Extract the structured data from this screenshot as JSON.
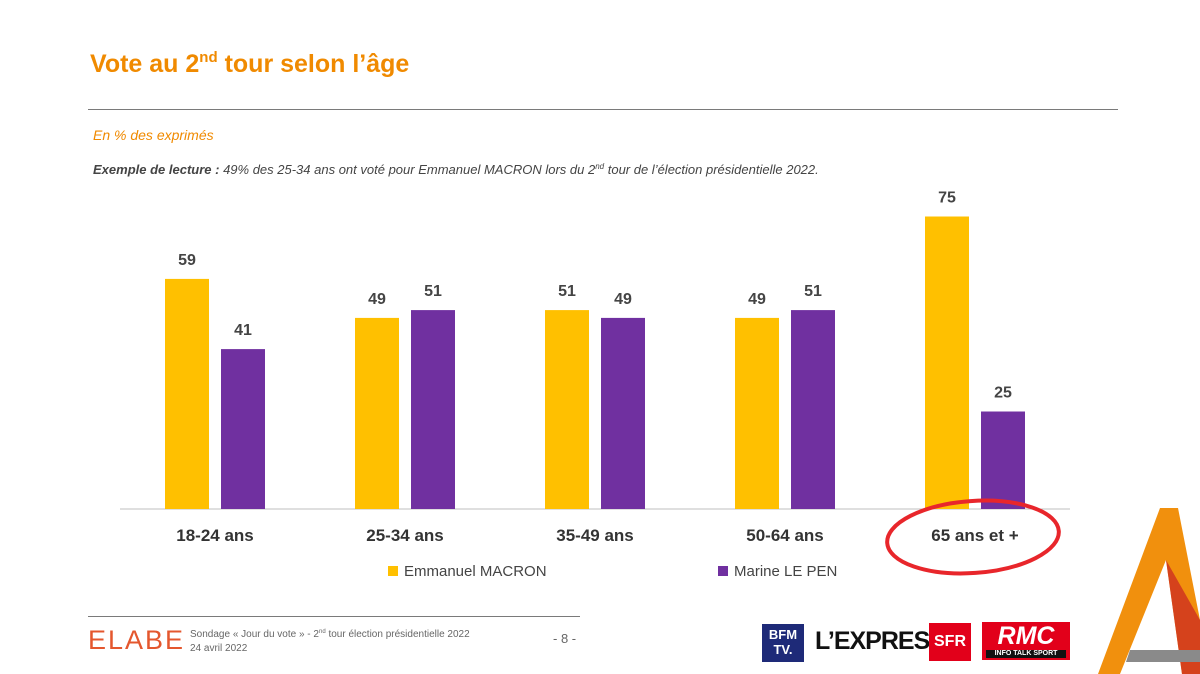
{
  "header": {
    "title_main": "Vote au 2",
    "title_sup": "nd",
    "title_rest": " tour selon l’âge",
    "subtitle": "En % des exprimés",
    "reading_bold": "Exemple de lecture :",
    "reading_text": " 49% des 25-34 ans ont voté pour Emmanuel MACRON lors du 2",
    "reading_sup": "nd",
    "reading_end": " tour de l’élection présidentielle 2022."
  },
  "chart_data": {
    "type": "bar",
    "categories": [
      "18-24 ans",
      "25-34 ans",
      "35-49 ans",
      "50-64 ans",
      "65 ans et +"
    ],
    "series": [
      {
        "name": "Emmanuel MACRON",
        "color": "#ffc000",
        "values": [
          59,
          49,
          51,
          49,
          75
        ]
      },
      {
        "name": "Marine LE PEN",
        "color": "#7030a0",
        "values": [
          41,
          51,
          49,
          51,
          25
        ]
      }
    ],
    "ylim": [
      0,
      75
    ],
    "grid": false,
    "legend": "bottom",
    "annotation": {
      "type": "red-ellipse",
      "target": "65 ans et +",
      "color": "#e8262b"
    }
  },
  "footer": {
    "brand": "ELABE",
    "line1_a": "Sondage « Jour du vote » - 2",
    "line1_sup": "nd",
    "line1_b": " tour élection présidentielle 2022",
    "line2": "24 avril 2022",
    "page": "- 8 -",
    "logos": {
      "bfm_line1": "BFM",
      "bfm_line2": "TV.",
      "express": "L’EXPRESS",
      "sfr": "SFR",
      "rmc": "RMC",
      "rmc_tag": "INFO TALK SPORT"
    }
  },
  "colors": {
    "accent": "#f08a00",
    "macron": "#ffc000",
    "lepen": "#7030a0"
  }
}
